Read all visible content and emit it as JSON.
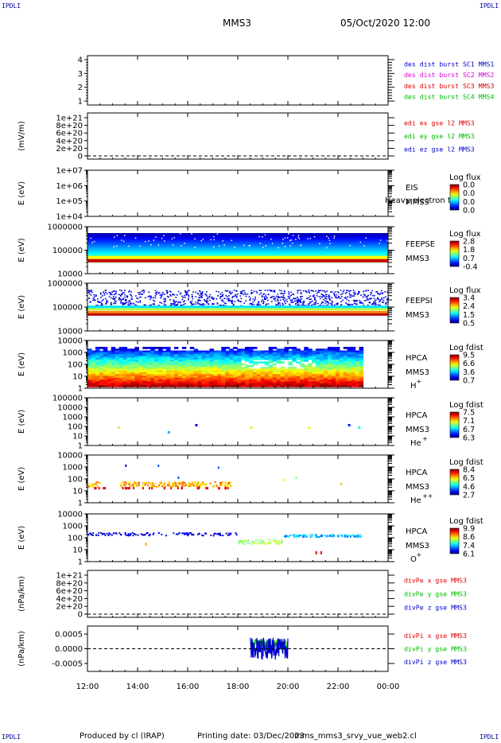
{
  "corner_labels": {
    "tl": "IPDLI",
    "tr": "IPDLI",
    "bl": "IPDLI",
    "br": "IPDLI"
  },
  "header": {
    "mission": "MMS3",
    "datetime": "05/Oct/2020 12:00"
  },
  "footer": {
    "produced": "Produced by cl (IRAP)",
    "printing": "Printing date: 03/Dec/2023",
    "file": "mms_mms3_srvy_vue_web2.cl"
  },
  "colors": {
    "red": "#dd0000",
    "green": "#00bb00",
    "blue": "#0000cc",
    "magenta": "#dd00dd",
    "frame": "#000000"
  },
  "chart_data": [
    {
      "id": "dist-burst",
      "type": "line",
      "ylabel": "",
      "y_ticks": [
        "1",
        "2",
        "3",
        "4"
      ],
      "ylim": [
        0.5,
        4.5
      ],
      "legend": [
        {
          "text": "des dist burst SC1 MMS1",
          "color": "#0000cc"
        },
        {
          "text": "des dist burst SC2 MMS2",
          "color": "#dd00dd"
        },
        {
          "text": "des dist burst SC3 MMS3",
          "color": "#dd0000"
        },
        {
          "text": "des dist burst SC4 MMS4",
          "color": "#00bb00"
        }
      ]
    },
    {
      "id": "edi-e",
      "type": "line",
      "ylabel": "(mV/m)",
      "y_ticks": [
        "0",
        "2e+20",
        "4e+20",
        "6e+20",
        "8e+20",
        "1e+21"
      ],
      "zero_line": true,
      "legend": [
        {
          "text": "edi ex gse l2 MMS3",
          "color": "#dd0000"
        },
        {
          "text": "edi ey gse l2 MMS3",
          "color": "#00bb00"
        },
        {
          "text": "edi ez gse l2 MMS3",
          "color": "#0000cc"
        }
      ]
    },
    {
      "id": "eis",
      "type": "heatmap",
      "ylabel": "E (eV)",
      "y_ticks": [
        "1e+04",
        "1e+05",
        "1e+06",
        "1e+07"
      ],
      "instrument": [
        "EIS",
        "MMS3"
      ],
      "extra_label": "Heavy electron to",
      "colorbar_title": "Log flux",
      "colorbar_ticks": [
        "0.0",
        "0.0",
        "0.0",
        "0.0"
      ]
    },
    {
      "id": "feepse",
      "type": "heatmap",
      "ylabel": "E (eV)",
      "y_ticks": [
        "10000",
        "100000",
        "1000000"
      ],
      "instrument": [
        "FEEPSE",
        "MMS3"
      ],
      "colorbar_title": "Log flux",
      "colorbar_ticks": [
        "2.8",
        "1.8",
        "0.7",
        "-0.4"
      ],
      "time_range": [
        0,
        12
      ]
    },
    {
      "id": "feepsi",
      "type": "heatmap",
      "ylabel": "E (eV)",
      "y_ticks": [
        "10000",
        "100000",
        "1000000"
      ],
      "instrument": [
        "FEEPSI",
        "MMS3"
      ],
      "colorbar_title": "Log flux",
      "colorbar_ticks": [
        "3.4",
        "2.4",
        "1.5",
        "0.5"
      ],
      "time_range": [
        0,
        12
      ]
    },
    {
      "id": "hpca-h",
      "type": "heatmap",
      "ylabel": "E (eV)",
      "y_ticks": [
        "1",
        "10",
        "100",
        "1000",
        "10000"
      ],
      "instrument": [
        "HPCA",
        "MMS3"
      ],
      "species": "H",
      "species_sup": "+",
      "colorbar_title": "Log fdist",
      "colorbar_ticks": [
        "9.5",
        "6.6",
        "3.6",
        "0.7"
      ],
      "time_range": [
        0,
        11
      ]
    },
    {
      "id": "hpca-he1",
      "type": "heatmap",
      "ylabel": "E (eV)",
      "y_ticks": [
        "1",
        "10",
        "100",
        "1000",
        "10000",
        "100000"
      ],
      "instrument": [
        "HPCA",
        "MMS3"
      ],
      "species": "He",
      "species_sup": "+",
      "colorbar_title": "Log fdist",
      "colorbar_ticks": [
        "7.5",
        "7.1",
        "6.7",
        "6.3"
      ]
    },
    {
      "id": "hpca-he2",
      "type": "heatmap",
      "ylabel": "E (eV)",
      "y_ticks": [
        "1",
        "10",
        "100",
        "1000",
        "10000"
      ],
      "instrument": [
        "HPCA",
        "MMS3"
      ],
      "species": "He",
      "species_sup": "++",
      "colorbar_title": "Log fdist",
      "colorbar_ticks": [
        "8.4",
        "6.5",
        "4.6",
        "2.7"
      ]
    },
    {
      "id": "hpca-o",
      "type": "heatmap",
      "ylabel": "E (eV)",
      "y_ticks": [
        "1",
        "10",
        "100",
        "1000",
        "10000"
      ],
      "instrument": [
        "HPCA",
        "MMS3"
      ],
      "species": "O",
      "species_sup": "+",
      "colorbar_title": "Log fdist",
      "colorbar_ticks": [
        "9.9",
        "8.6",
        "7.4",
        "6.1"
      ]
    },
    {
      "id": "divpe",
      "type": "line",
      "ylabel": "(nPa/km)",
      "y_ticks": [
        "0",
        "2e+20",
        "4e+20",
        "6e+20",
        "8e+20",
        "1e+21"
      ],
      "zero_line": true,
      "legend": [
        {
          "text": "divPe x gse MMS3",
          "color": "#dd0000"
        },
        {
          "text": "divPe y gse MMS3",
          "color": "#00bb00"
        },
        {
          "text": "divPe z gse MMS3",
          "color": "#0000cc"
        }
      ]
    },
    {
      "id": "divpi",
      "type": "line",
      "ylabel": "(nPa/km)",
      "y_ticks": [
        "-0.0005",
        "0.0000",
        "0.0005"
      ],
      "ylim": [
        -0.0009,
        0.0009
      ],
      "zero_line": true,
      "legend": [
        {
          "text": "divPi x gse MMS3",
          "color": "#dd0000"
        },
        {
          "text": "divPi y gse MMS3",
          "color": "#00bb00"
        },
        {
          "text": "divPi z gse MMS3",
          "color": "#0000cc"
        }
      ],
      "activity_range": [
        6.5,
        8.0
      ]
    }
  ],
  "x_axis": {
    "ticks": [
      "12:00",
      "14:00",
      "16:00",
      "18:00",
      "20:00",
      "22:00",
      "00:00"
    ],
    "hours": [
      0,
      2,
      4,
      6,
      8,
      10,
      12
    ]
  }
}
